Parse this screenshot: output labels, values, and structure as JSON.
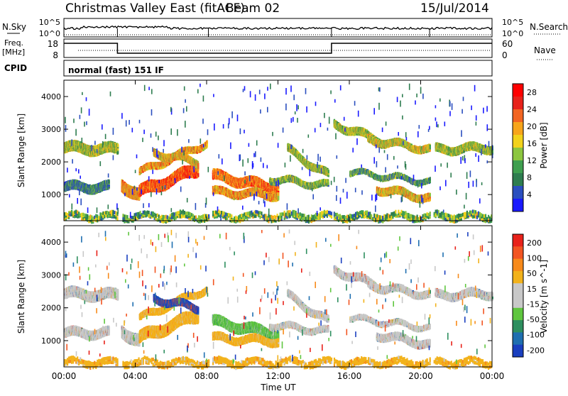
{
  "header": {
    "title": "Christmas Valley East (fitACF)",
    "beam": "Beam 02",
    "date": "15/Jul/2014"
  },
  "nsky_panel": {
    "left_label": "N.Sky",
    "left_ticks": [
      "10^5",
      "10^0"
    ],
    "right_ticks": [
      "10^5",
      "10^0"
    ],
    "right_label": "N.Search"
  },
  "freq_panel": {
    "left_label_1": "Freq.",
    "left_label_2": "[MHz]",
    "left_ticks": [
      "18",
      "8"
    ],
    "right_ticks": [
      "60",
      "0"
    ],
    "right_label": "Nave"
  },
  "cpid": {
    "label": "CPID",
    "value": "normal (fast) 151 IF"
  },
  "colors": {
    "power_scale": [
      "#1a1aff",
      "#2b4fbf",
      "#2e7d4f",
      "#3f9f4f",
      "#8cc63f",
      "#f2d21b",
      "#f7a51b",
      "#f26522",
      "#e8221a",
      "#ff0000"
    ],
    "velocity_scale": [
      "#1a3fbf",
      "#1f6fb0",
      "#2e8f5f",
      "#5fc63f",
      "#c8c8c8",
      "#c8c8c8",
      "#f2b21b",
      "#f78a1b",
      "#f25522",
      "#e8221a"
    ]
  },
  "chart_data": [
    {
      "type": "heatmap",
      "name": "power",
      "xlabel": "",
      "ylabel": "Slant Range [km]",
      "x_ticks": [
        "00:00",
        "04:00",
        "08:00",
        "12:00",
        "16:00",
        "20:00",
        "00:00"
      ],
      "y_ticks": [
        "1000",
        "2000",
        "3000",
        "4000"
      ],
      "ylim": [
        200,
        4500
      ],
      "colorbar_label": "Power [dB]",
      "colorbar_ticks": [
        "4",
        "8",
        "12",
        "16",
        "20",
        "24",
        "28"
      ],
      "clim": [
        0,
        30
      ]
    },
    {
      "type": "heatmap",
      "name": "velocity",
      "xlabel": "Time UT",
      "ylabel": "Slant Range [km]",
      "x_ticks": [
        "00:00",
        "04:00",
        "08:00",
        "12:00",
        "16:00",
        "20:00",
        "00:00"
      ],
      "y_ticks": [
        "1000",
        "2000",
        "3000",
        "4000"
      ],
      "ylim": [
        200,
        4500
      ],
      "colorbar_label": "Velocity [m s^-1]",
      "colorbar_ticks": [
        "200",
        "100",
        "50",
        "15",
        "-15",
        "-50",
        "-100",
        "-200"
      ],
      "clim": [
        -250,
        250
      ]
    }
  ]
}
